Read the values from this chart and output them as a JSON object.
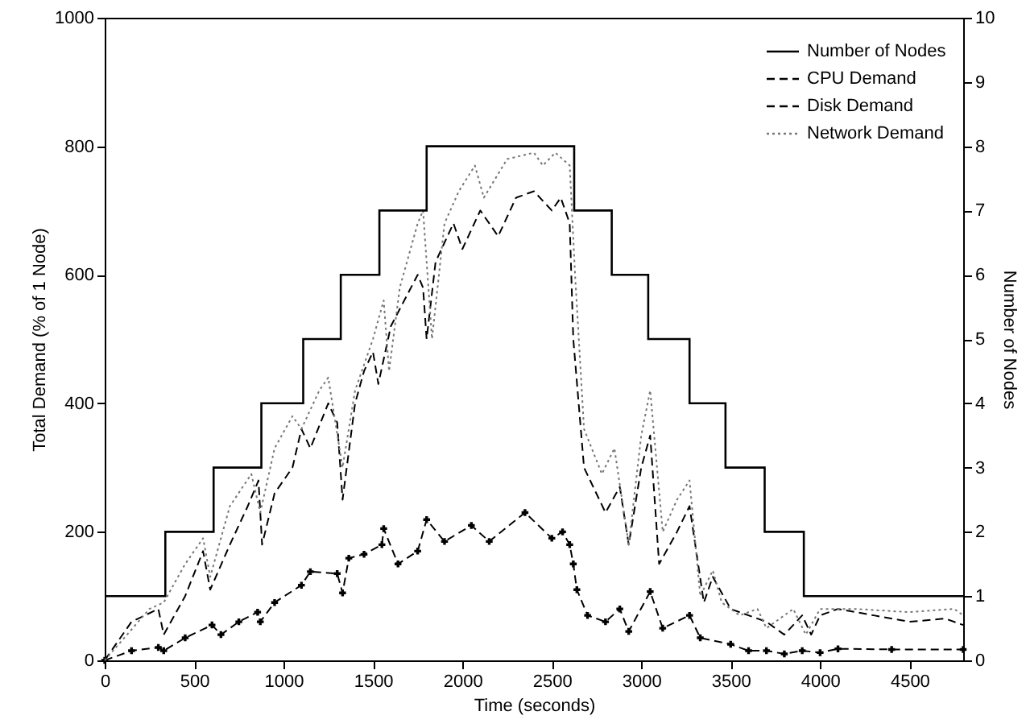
{
  "chart_data": {
    "type": "line",
    "xlabel": "Time (seconds)",
    "ylabel": "Total Demand (% of 1 Node)",
    "y2label": "Number of Nodes",
    "xlim": [
      0,
      4800
    ],
    "xticks": [
      0,
      500,
      1000,
      1500,
      2000,
      2500,
      3000,
      3500,
      4000,
      4500
    ],
    "ylim": [
      0,
      1000
    ],
    "yticks": [
      0,
      200,
      400,
      600,
      800,
      1000
    ],
    "y2lim": [
      0,
      10
    ],
    "y2ticks": [
      0,
      1,
      2,
      3,
      4,
      5,
      6,
      7,
      8,
      9,
      10
    ],
    "grid": false,
    "legend": "top right",
    "series": [
      {
        "name": "Number of Nodes",
        "type": "step",
        "axis": "y2",
        "color": "#000000",
        "line_style": "solid",
        "x": [
          0,
          339,
          609,
          876,
          1110,
          1320,
          1536,
          1800,
          2625,
          2835,
          3039,
          3270,
          3471,
          3690,
          3909,
          4800
        ],
        "values": [
          1,
          2,
          3,
          4,
          5,
          6,
          7,
          8,
          7,
          6,
          5,
          4,
          3,
          2,
          1,
          1
        ]
      },
      {
        "name": "CPU Demand",
        "color": "#000000",
        "line_style": "dashed",
        "marker": "cross",
        "x": [
          0,
          150,
          300,
          330,
          450,
          600,
          650,
          750,
          855,
          870,
          950,
          1100,
          1150,
          1300,
          1330,
          1365,
          1450,
          1550,
          1560,
          1640,
          1750,
          1800,
          1900,
          2050,
          2150,
          2350,
          2500,
          2560,
          2600,
          2620,
          2640,
          2700,
          2800,
          2880,
          2930,
          3050,
          3120,
          3270,
          3330,
          3500,
          3600,
          3700,
          3800,
          3900,
          4000,
          4100,
          4400,
          4800
        ],
        "values": [
          0,
          15,
          20,
          15,
          35,
          55,
          40,
          60,
          75,
          60,
          90,
          117,
          138,
          135,
          105,
          159,
          165,
          180,
          205,
          150,
          170,
          219,
          185,
          210,
          185,
          230,
          190,
          200,
          180,
          150,
          110,
          70,
          60,
          80,
          45,
          107,
          50,
          70,
          35,
          25,
          15,
          15,
          10,
          15,
          12,
          18,
          17,
          17
        ]
      },
      {
        "name": "Disk Demand",
        "color": "#000000",
        "line_style": "dashed",
        "x": [
          0,
          150,
          300,
          330,
          450,
          550,
          590,
          700,
          800,
          860,
          880,
          950,
          1050,
          1100,
          1150,
          1250,
          1300,
          1330,
          1400,
          1450,
          1500,
          1530,
          1600,
          1750,
          1780,
          1800,
          1850,
          1950,
          2000,
          2100,
          2200,
          2300,
          2400,
          2500,
          2550,
          2600,
          2620,
          2680,
          2800,
          2880,
          2930,
          3000,
          3050,
          3100,
          3200,
          3270,
          3350,
          3400,
          3500,
          3700,
          3800,
          3900,
          3950,
          4000,
          4100,
          4300,
          4500,
          4700,
          4800
        ],
        "values": [
          0,
          60,
          80,
          40,
          100,
          170,
          110,
          180,
          240,
          280,
          180,
          260,
          300,
          360,
          330,
          400,
          370,
          250,
          400,
          450,
          480,
          430,
          520,
          600,
          580,
          500,
          620,
          680,
          640,
          700,
          660,
          720,
          730,
          700,
          720,
          680,
          500,
          300,
          230,
          270,
          180,
          300,
          350,
          150,
          200,
          240,
          90,
          130,
          80,
          60,
          40,
          70,
          40,
          70,
          80,
          70,
          60,
          65,
          55
        ]
      },
      {
        "name": "Network Demand",
        "color": "#777777",
        "line_style": "dotted",
        "x": [
          0,
          250,
          330,
          450,
          550,
          590,
          700,
          820,
          870,
          950,
          1050,
          1100,
          1200,
          1250,
          1330,
          1400,
          1500,
          1560,
          1590,
          1650,
          1750,
          1780,
          1830,
          1900,
          1980,
          2070,
          2120,
          2250,
          2400,
          2450,
          2520,
          2600,
          2630,
          2680,
          2780,
          2850,
          2930,
          3000,
          3050,
          3120,
          3200,
          3270,
          3330,
          3400,
          3450,
          3550,
          3650,
          3700,
          3850,
          3920,
          4000,
          4200,
          4500,
          4750,
          4800
        ],
        "values": [
          0,
          80,
          90,
          150,
          190,
          130,
          240,
          290,
          230,
          330,
          380,
          360,
          420,
          440,
          300,
          420,
          500,
          560,
          450,
          580,
          680,
          700,
          500,
          680,
          730,
          770,
          720,
          780,
          790,
          770,
          790,
          770,
          600,
          360,
          290,
          330,
          180,
          350,
          420,
          200,
          250,
          280,
          100,
          140,
          90,
          70,
          80,
          50,
          80,
          40,
          80,
          80,
          75,
          80,
          70
        ]
      }
    ]
  }
}
